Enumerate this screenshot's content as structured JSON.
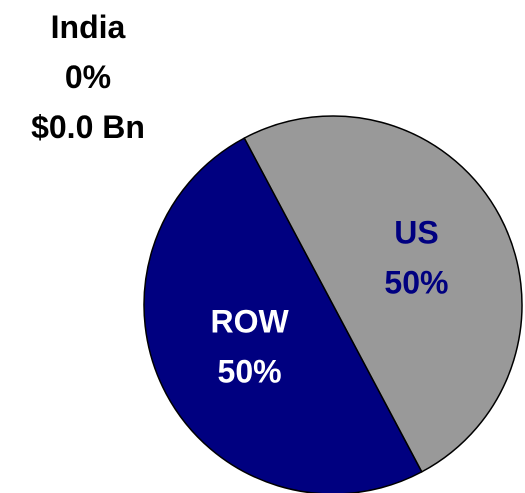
{
  "chart_data": {
    "type": "pie",
    "categories": [
      "India",
      "US",
      "ROW"
    ],
    "values": [
      0,
      50,
      50
    ],
    "value_labels": [
      "0%",
      "50%",
      "50%"
    ],
    "colors": [
      "#ff9900",
      "#999999",
      "#000080"
    ],
    "label_colors": [
      "#000000",
      "#000080",
      "#ffffff"
    ],
    "annotations": [
      "$0.0 Bn"
    ]
  }
}
